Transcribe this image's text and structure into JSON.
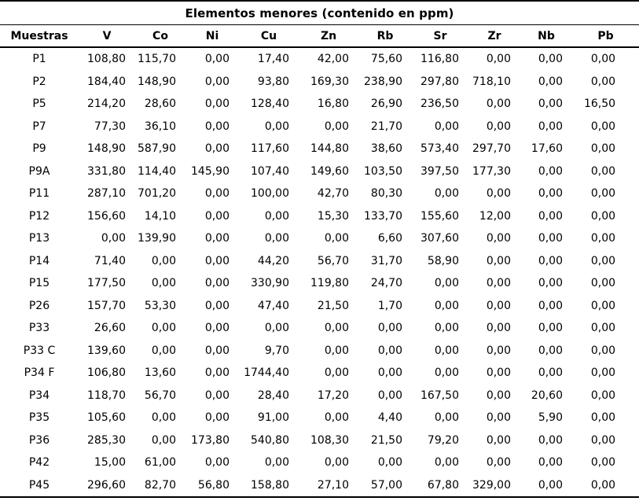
{
  "colors": {
    "text": "#000000",
    "border": "#000000",
    "background": "#ffffff"
  },
  "chart_data": {
    "type": "table",
    "title": "Elementos menores (contenido en ppm)",
    "row_header_label": "Muestras",
    "columns": [
      "V",
      "Co",
      "Ni",
      "Cu",
      "Zn",
      "Rb",
      "Sr",
      "Zr",
      "Nb",
      "Pb"
    ],
    "unit": "ppm",
    "decimal_separator": ",",
    "layout": {
      "grid": false,
      "header_align": "center",
      "value_align": "right",
      "rules": [
        "top",
        "below-title",
        "below-header",
        "bottom"
      ]
    },
    "rows": [
      {
        "label": "P1",
        "values": [
          "108,80",
          "115,70",
          "0,00",
          "17,40",
          "42,00",
          "75,60",
          "116,80",
          "0,00",
          "0,00",
          "0,00"
        ]
      },
      {
        "label": "P2",
        "values": [
          "184,40",
          "148,90",
          "0,00",
          "93,80",
          "169,30",
          "238,90",
          "297,80",
          "718,10",
          "0,00",
          "0,00"
        ]
      },
      {
        "label": "P5",
        "values": [
          "214,20",
          "28,60",
          "0,00",
          "128,40",
          "16,80",
          "26,90",
          "236,50",
          "0,00",
          "0,00",
          "16,50"
        ]
      },
      {
        "label": "P7",
        "values": [
          "77,30",
          "36,10",
          "0,00",
          "0,00",
          "0,00",
          "21,70",
          "0,00",
          "0,00",
          "0,00",
          "0,00"
        ]
      },
      {
        "label": "P9",
        "values": [
          "148,90",
          "587,90",
          "0,00",
          "117,60",
          "144,80",
          "38,60",
          "573,40",
          "297,70",
          "17,60",
          "0,00"
        ]
      },
      {
        "label": "P9A",
        "values": [
          "331,80",
          "114,40",
          "145,90",
          "107,40",
          "149,60",
          "103,50",
          "397,50",
          "177,30",
          "0,00",
          "0,00"
        ]
      },
      {
        "label": "P11",
        "values": [
          "287,10",
          "701,20",
          "0,00",
          "100,00",
          "42,70",
          "80,30",
          "0,00",
          "0,00",
          "0,00",
          "0,00"
        ]
      },
      {
        "label": "P12",
        "values": [
          "156,60",
          "14,10",
          "0,00",
          "0,00",
          "15,30",
          "133,70",
          "155,60",
          "12,00",
          "0,00",
          "0,00"
        ]
      },
      {
        "label": "P13",
        "values": [
          "0,00",
          "139,90",
          "0,00",
          "0,00",
          "0,00",
          "6,60",
          "307,60",
          "0,00",
          "0,00",
          "0,00"
        ]
      },
      {
        "label": "P14",
        "values": [
          "71,40",
          "0,00",
          "0,00",
          "44,20",
          "56,70",
          "31,70",
          "58,90",
          "0,00",
          "0,00",
          "0,00"
        ]
      },
      {
        "label": "P15",
        "values": [
          "177,50",
          "0,00",
          "0,00",
          "330,90",
          "119,80",
          "24,70",
          "0,00",
          "0,00",
          "0,00",
          "0,00"
        ]
      },
      {
        "label": "P26",
        "values": [
          "157,70",
          "53,30",
          "0,00",
          "47,40",
          "21,50",
          "1,70",
          "0,00",
          "0,00",
          "0,00",
          "0,00"
        ]
      },
      {
        "label": "P33",
        "values": [
          "26,60",
          "0,00",
          "0,00",
          "0,00",
          "0,00",
          "0,00",
          "0,00",
          "0,00",
          "0,00",
          "0,00"
        ]
      },
      {
        "label": "P33 C",
        "values": [
          "139,60",
          "0,00",
          "0,00",
          "9,70",
          "0,00",
          "0,00",
          "0,00",
          "0,00",
          "0,00",
          "0,00"
        ]
      },
      {
        "label": "P34 F",
        "values": [
          "106,80",
          "13,60",
          "0,00",
          "1744,40",
          "0,00",
          "0,00",
          "0,00",
          "0,00",
          "0,00",
          "0,00"
        ]
      },
      {
        "label": "P34",
        "values": [
          "118,70",
          "56,70",
          "0,00",
          "28,40",
          "17,20",
          "0,00",
          "167,50",
          "0,00",
          "20,60",
          "0,00"
        ]
      },
      {
        "label": "P35",
        "values": [
          "105,60",
          "0,00",
          "0,00",
          "91,00",
          "0,00",
          "4,40",
          "0,00",
          "0,00",
          "5,90",
          "0,00"
        ]
      },
      {
        "label": "P36",
        "values": [
          "285,30",
          "0,00",
          "173,80",
          "540,80",
          "108,30",
          "21,50",
          "79,20",
          "0,00",
          "0,00",
          "0,00"
        ]
      },
      {
        "label": "P42",
        "values": [
          "15,00",
          "61,00",
          "0,00",
          "0,00",
          "0,00",
          "0,00",
          "0,00",
          "0,00",
          "0,00",
          "0,00"
        ]
      },
      {
        "label": "P45",
        "values": [
          "296,60",
          "82,70",
          "56,80",
          "158,80",
          "27,10",
          "57,00",
          "67,80",
          "329,00",
          "0,00",
          "0,00"
        ]
      }
    ]
  }
}
